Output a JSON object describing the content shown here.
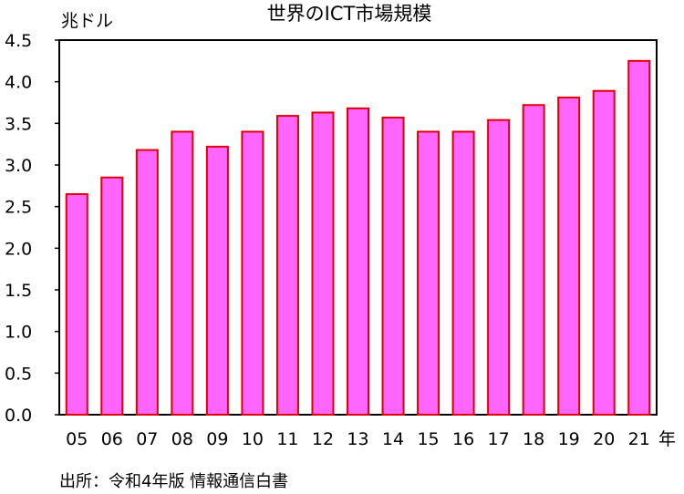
{
  "chart_data": {
    "type": "bar",
    "title": "世界のICT市場規模",
    "ylabel": "兆ドル",
    "xlabel": "年",
    "source": "出所：令和4年版 情報通信白書",
    "categories": [
      "05",
      "06",
      "07",
      "08",
      "09",
      "10",
      "11",
      "12",
      "13",
      "14",
      "15",
      "16",
      "17",
      "18",
      "19",
      "20",
      "21"
    ],
    "values": [
      2.65,
      2.85,
      3.18,
      3.4,
      3.22,
      3.4,
      3.59,
      3.63,
      3.68,
      3.57,
      3.4,
      3.4,
      3.54,
      3.72,
      3.81,
      3.89,
      4.25
    ],
    "ylim": [
      0,
      4.5
    ],
    "yticks": [
      "0.0",
      "0.5",
      "1.0",
      "1.5",
      "2.0",
      "2.5",
      "3.0",
      "3.5",
      "4.0",
      "4.5"
    ],
    "grid": false,
    "legend": "none",
    "colors": {
      "bar_fill": "#ff66ff",
      "bar_stroke": "#e00000",
      "axis": "#000000",
      "text": "#000000"
    }
  }
}
